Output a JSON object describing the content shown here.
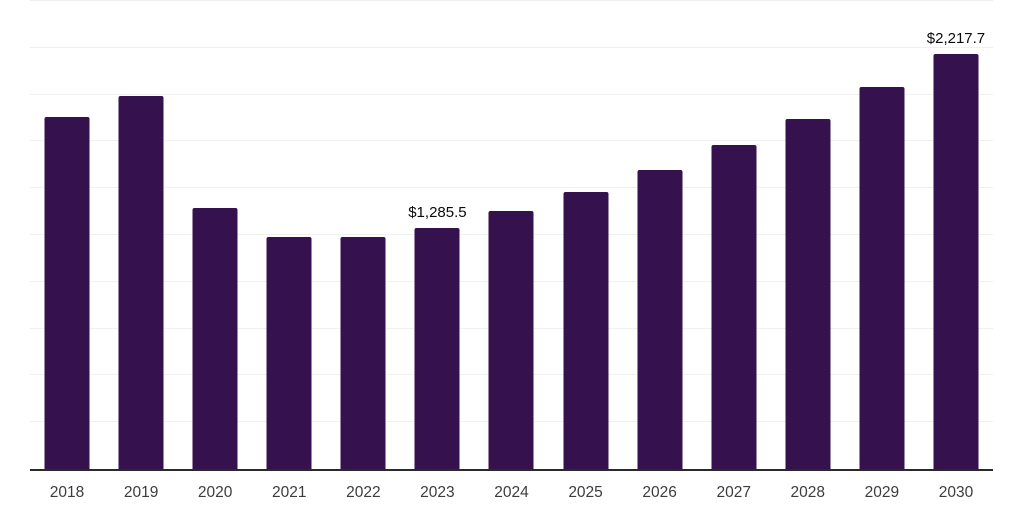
{
  "chart": {
    "background": "#ffffff",
    "bar_color": "#35114e",
    "axis_color": "#2a2a2a",
    "gridline_color": "#f0f0f1",
    "tick_label_color": "#3c3c3c",
    "data_label_color": "#0a0a0a"
  },
  "chart_data": {
    "type": "bar",
    "title": "",
    "xlabel": "",
    "ylabel": "",
    "categories": [
      "2018",
      "2019",
      "2020",
      "2021",
      "2022",
      "2023",
      "2024",
      "2025",
      "2026",
      "2027",
      "2028",
      "2029",
      "2030"
    ],
    "values": [
      1883,
      1995,
      1394,
      1238,
      1240,
      1285.5,
      1378,
      1479,
      1597,
      1730,
      1872,
      2040,
      2217.7
    ],
    "data_labels": [
      "",
      "",
      "",
      "",
      "",
      "$1,285.5",
      "",
      "",
      "",
      "",
      "",
      "",
      "$2,217.7"
    ],
    "ylim": [
      0,
      2500
    ],
    "gridline_step": 250,
    "grid": "horizontal",
    "legend": "none",
    "y_axis_tick_labels": "none"
  }
}
